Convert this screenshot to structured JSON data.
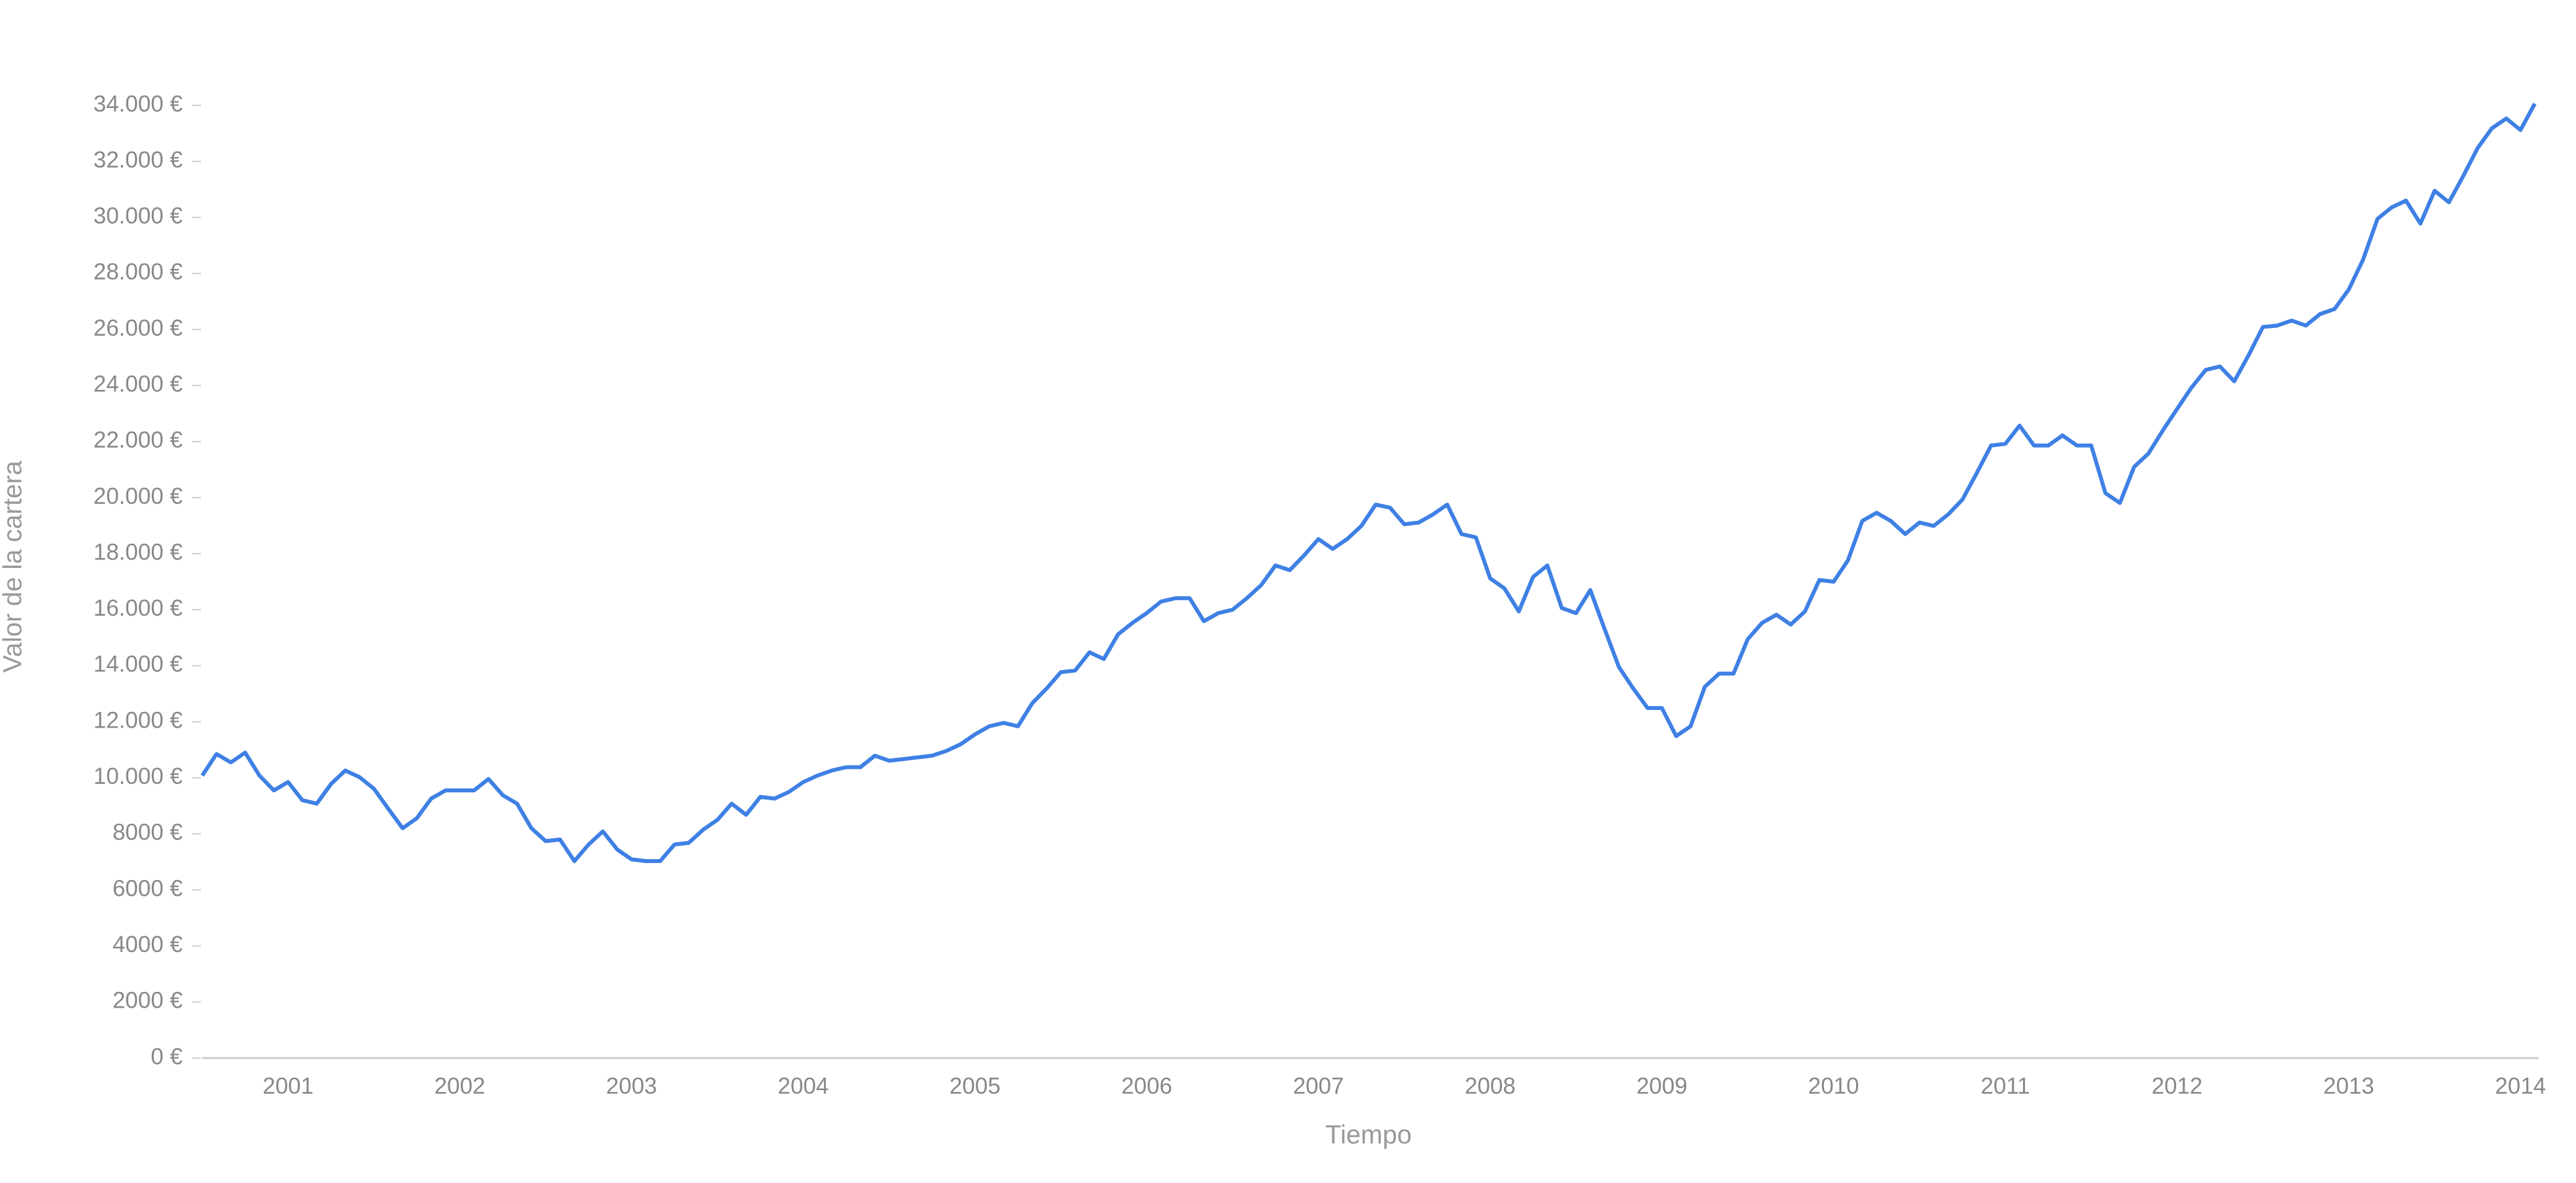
{
  "chart_data": {
    "type": "line",
    "x_label": "Tiempo",
    "y_label": "Valor de la cartera",
    "x": [
      2000.5,
      2000.583,
      2000.667,
      2000.75,
      2000.833,
      2000.917,
      2001,
      2001.083,
      2001.167,
      2001.25,
      2001.333,
      2001.417,
      2001.5,
      2001.583,
      2001.667,
      2001.75,
      2001.833,
      2001.917,
      2002,
      2002.083,
      2002.167,
      2002.25,
      2002.333,
      2002.417,
      2002.5,
      2002.583,
      2002.667,
      2002.75,
      2002.833,
      2002.917,
      2003,
      2003.083,
      2003.167,
      2003.25,
      2003.333,
      2003.417,
      2003.5,
      2003.583,
      2003.667,
      2003.75,
      2003.833,
      2003.917,
      2004,
      2004.083,
      2004.167,
      2004.25,
      2004.333,
      2004.417,
      2004.5,
      2004.583,
      2004.667,
      2004.75,
      2004.833,
      2004.917,
      2005,
      2005.083,
      2005.167,
      2005.25,
      2005.333,
      2005.417,
      2005.5,
      2005.583,
      2005.667,
      2005.75,
      2005.833,
      2005.917,
      2006,
      2006.083,
      2006.167,
      2006.25,
      2006.333,
      2006.417,
      2006.5,
      2006.583,
      2006.667,
      2006.75,
      2006.833,
      2006.917,
      2007,
      2007.083,
      2007.167,
      2007.25,
      2007.333,
      2007.417,
      2007.5,
      2007.583,
      2007.667,
      2007.75,
      2007.833,
      2007.917,
      2008,
      2008.083,
      2008.167,
      2008.25,
      2008.333,
      2008.417,
      2008.5,
      2008.583,
      2008.667,
      2008.75,
      2008.833,
      2008.917,
      2009,
      2009.083,
      2009.167,
      2009.25,
      2009.333,
      2009.417,
      2009.5,
      2009.583,
      2009.667,
      2009.75,
      2009.833,
      2009.917,
      2010,
      2010.083,
      2010.167,
      2010.25,
      2010.333,
      2010.417,
      2010.5,
      2010.583,
      2010.667,
      2010.75,
      2010.833,
      2010.917,
      2011,
      2011.083,
      2011.167,
      2011.25,
      2011.333,
      2011.417,
      2011.5,
      2011.583,
      2011.667,
      2011.75,
      2011.833,
      2011.917,
      2012,
      2012.083,
      2012.167,
      2012.25,
      2012.333,
      2012.417,
      2012.5,
      2012.583,
      2012.667,
      2012.75,
      2012.833,
      2012.917,
      2013,
      2013.083,
      2013.167,
      2013.25,
      2013.333,
      2013.417,
      2013.5,
      2013.583,
      2013.667,
      2013.75,
      2013.833,
      2013.917,
      2014,
      2014.083
    ],
    "series": [
      {
        "color": "#3f80e4",
        "values": [
          10080,
          10850,
          10550,
          10900,
          10080,
          9550,
          9850,
          9200,
          9080,
          9780,
          10260,
          10020,
          9610,
          8900,
          8200,
          8560,
          9260,
          9550,
          9550,
          9550,
          9960,
          9380,
          9080,
          8200,
          7740,
          7800,
          7030,
          7620,
          8090,
          7440,
          7090,
          7030,
          7030,
          7620,
          7680,
          8150,
          8500,
          9080,
          8680,
          9320,
          9260,
          9500,
          9850,
          10080,
          10260,
          10380,
          10380,
          10790,
          10610,
          10670,
          10730,
          10790,
          10960,
          11200,
          11550,
          11840,
          11960,
          11840,
          12660,
          13190,
          13770,
          13830,
          14480,
          14240,
          15120,
          15530,
          15880,
          16290,
          16410,
          16410,
          15590,
          15880,
          16000,
          16410,
          16880,
          17580,
          17410,
          17940,
          18520,
          18170,
          18520,
          18990,
          19750,
          19640,
          19050,
          19110,
          19400,
          19750,
          18700,
          18580,
          17120,
          16760,
          15940,
          17170,
          17580,
          16060,
          15880,
          16700,
          15300,
          13950,
          13190,
          12490,
          12490,
          11490,
          11840,
          13250,
          13720,
          13720,
          14950,
          15530,
          15820,
          15470,
          15940,
          17060,
          17000,
          17760,
          19170,
          19460,
          19170,
          18700,
          19110,
          18990,
          19400,
          19930,
          20870,
          21860,
          21920,
          22570,
          21860,
          21860,
          22220,
          21860,
          21860,
          20160,
          19810,
          21100,
          21570,
          22400,
          23160,
          23920,
          24560,
          24680,
          24150,
          25090,
          26090,
          26140,
          26320,
          26140,
          26550,
          26730,
          27430,
          28490,
          29950,
          30360,
          30600,
          29780,
          30950,
          30540,
          31480,
          32470,
          33180,
          33530,
          33120,
          34060
        ]
      }
    ],
    "xlim": [
      2000.5,
      2014.083
    ],
    "xticks": [
      2001,
      2002,
      2003,
      2004,
      2005,
      2006,
      2007,
      2008,
      2009,
      2010,
      2011,
      2012,
      2013,
      2014
    ],
    "ylim": [
      0,
      34000
    ],
    "yticks": [
      {
        "value": 0,
        "label": "0 €"
      },
      {
        "value": 2000,
        "label": "2000 €"
      },
      {
        "value": 4000,
        "label": "4000 €"
      },
      {
        "value": 6000,
        "label": "6000 €"
      },
      {
        "value": 8000,
        "label": "8000 €"
      },
      {
        "value": 10000,
        "label": "10.000 €"
      },
      {
        "value": 12000,
        "label": "12.000 €"
      },
      {
        "value": 14000,
        "label": "14.000 €"
      },
      {
        "value": 16000,
        "label": "16.000 €"
      },
      {
        "value": 18000,
        "label": "18.000 €"
      },
      {
        "value": 20000,
        "label": "20.000 €"
      },
      {
        "value": 22000,
        "label": "22.000 €"
      },
      {
        "value": 24000,
        "label": "24.000 €"
      },
      {
        "value": 26000,
        "label": "26.000 €"
      },
      {
        "value": 28000,
        "label": "28.000 €"
      },
      {
        "value": 30000,
        "label": "30.000 €"
      },
      {
        "value": 32000,
        "label": "32.000 €"
      },
      {
        "value": 34000,
        "label": "34.000 €"
      }
    ],
    "grid": false
  }
}
